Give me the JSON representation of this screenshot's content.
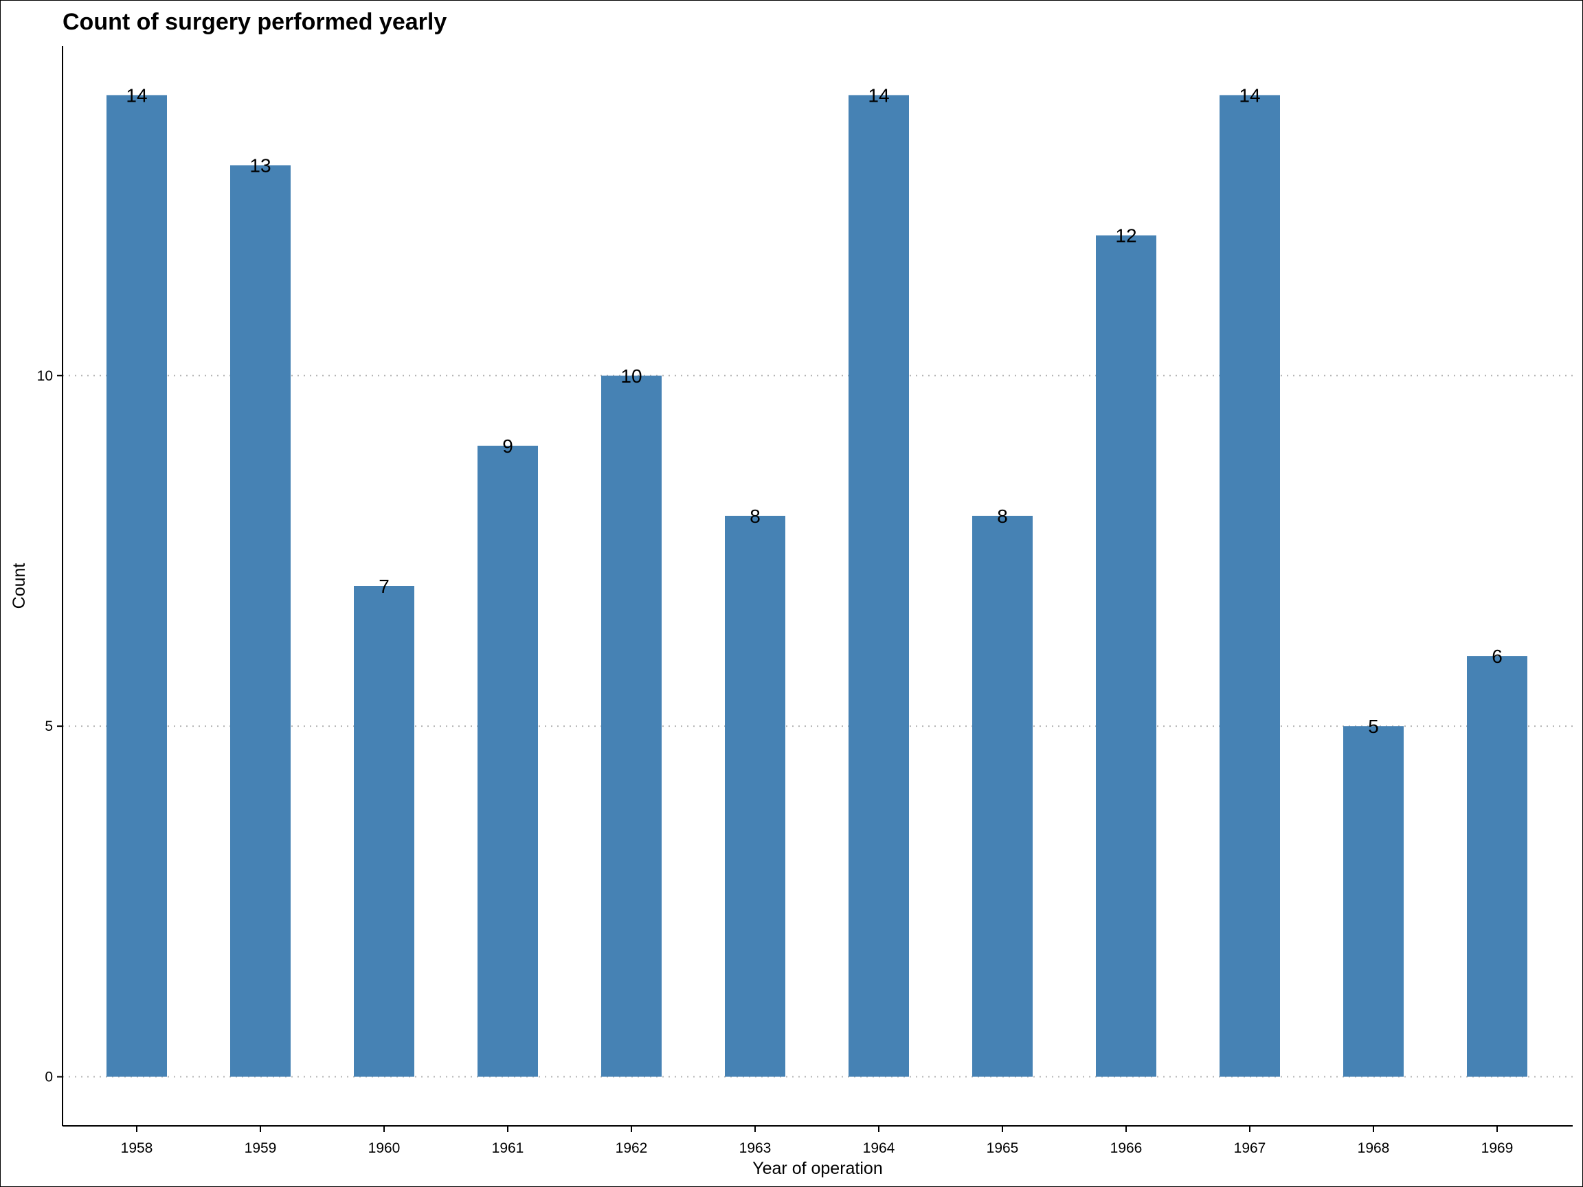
{
  "chart_data": {
    "type": "bar",
    "title": "Count of surgery performed yearly",
    "xlabel": "Year of operation",
    "ylabel": "Count",
    "categories": [
      "1958",
      "1959",
      "1960",
      "1961",
      "1962",
      "1963",
      "1964",
      "1965",
      "1966",
      "1967",
      "1968",
      "1969"
    ],
    "values": [
      14,
      13,
      7,
      9,
      10,
      8,
      14,
      8,
      12,
      14,
      5,
      6
    ],
    "data_labels": [
      "14",
      "13",
      "7",
      "9",
      "10",
      "8",
      "14",
      "8",
      "12",
      "14",
      "5",
      "6"
    ],
    "y_ticks": [
      0,
      5,
      10
    ],
    "y_tick_labels": [
      "0",
      "5",
      "10"
    ],
    "ylim": [
      -0.7,
      14.7
    ],
    "grid": "horizontal-dotted",
    "legend": "none",
    "bar_color": "#4682b4"
  }
}
